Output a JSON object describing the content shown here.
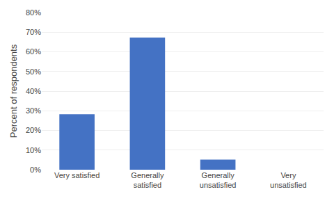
{
  "chart_data": {
    "type": "bar",
    "categories": [
      "Very satisfied",
      "Generally\nsatisfied",
      "Generally\nunsatisfied",
      "Very\nunsatisfied"
    ],
    "values": [
      0.282,
      0.673,
      0.051,
      0.0
    ],
    "color": "#4472C4",
    "ylabel": "Percent of respondents",
    "ylim": [
      0,
      0.8
    ],
    "yticks": [
      {
        "value": 0.0,
        "label": "0%"
      },
      {
        "value": 0.1,
        "label": "10%"
      },
      {
        "value": 0.2,
        "label": "20%"
      },
      {
        "value": 0.3,
        "label": "30%"
      },
      {
        "value": 0.4,
        "label": "40%"
      },
      {
        "value": 0.5,
        "label": "50%"
      },
      {
        "value": 0.6,
        "label": "60%"
      },
      {
        "value": 0.7,
        "label": "70%"
      },
      {
        "value": 0.8,
        "label": "80%"
      }
    ],
    "grid": true
  }
}
